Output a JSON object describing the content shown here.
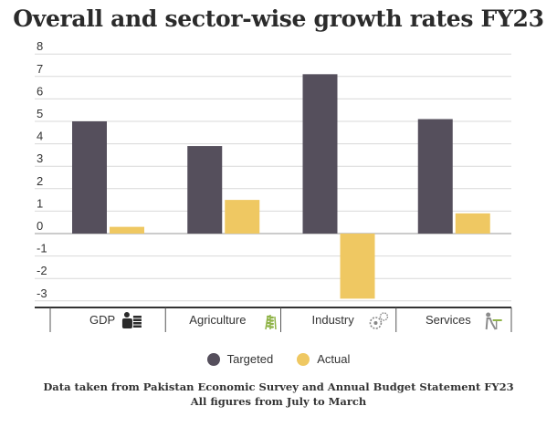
{
  "title": "Overall and sector-wise growth rates FY23",
  "chart_data": {
    "type": "bar",
    "title": "Overall and sector-wise growth rates FY23",
    "categories": [
      "GDP",
      "Agriculture",
      "Industry",
      "Services"
    ],
    "category_icons": [
      "money-coins-icon",
      "wheat-icon",
      "gears-icon",
      "worker-icon"
    ],
    "series": [
      {
        "name": "Targeted",
        "color": "#554f5c",
        "values": [
          5.0,
          3.9,
          7.1,
          5.1
        ]
      },
      {
        "name": "Actual",
        "color": "#efc862",
        "values": [
          0.3,
          1.5,
          -2.9,
          0.9
        ]
      }
    ],
    "ylim": [
      -3.3,
      8
    ],
    "yticks": [
      8,
      7,
      6,
      5,
      4,
      3,
      2,
      1,
      0,
      -1,
      -2,
      -3
    ],
    "xlabel": "",
    "ylabel": "",
    "grid": true,
    "legend_position": "bottom"
  },
  "legend": {
    "targeted": "Targeted",
    "actual": "Actual"
  },
  "colors": {
    "targeted": "#554f5c",
    "actual": "#efc862"
  },
  "footnote": {
    "line1": "Data taken from Pakistan Economic Survey and Annual Budget Statement FY23",
    "line2": "All figures from July to March"
  }
}
